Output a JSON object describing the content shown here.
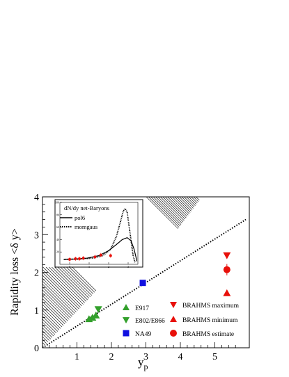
{
  "chart_data": {
    "type": "scatter",
    "ylabel": "Rapidity loss <δ y>",
    "xlabel": "y",
    "xlabel_sub": "p",
    "xlim": [
      0,
      6
    ],
    "ylim": [
      0,
      4
    ],
    "x_ticks": [
      "1",
      "2",
      "3",
      "4",
      "5"
    ],
    "y_ticks": [
      "0",
      "1",
      "2",
      "3",
      "4"
    ],
    "reference_line": {
      "style": "dotted",
      "x": [
        0,
        5.9
      ],
      "y": [
        0,
        3.4
      ]
    },
    "shaded_regions": [
      "upper-left hatched triangle",
      "lower-left hatched region"
    ],
    "series": [
      {
        "name": "E917",
        "marker": "triangle-up",
        "color": "#33a02c",
        "points": [
          {
            "x": 1.35,
            "y": 0.76
          },
          {
            "x": 1.45,
            "y": 0.8
          },
          {
            "x": 1.55,
            "y": 0.86
          }
        ]
      },
      {
        "name": "E802/E866",
        "marker": "triangle-down",
        "color": "#33a02c",
        "points": [
          {
            "x": 1.62,
            "y": 1.02
          }
        ]
      },
      {
        "name": "NA49",
        "marker": "square",
        "color": "#1010e0",
        "points": [
          {
            "x": 2.91,
            "y": 1.72
          }
        ]
      },
      {
        "name": "BRAHMS maximum",
        "marker": "triangle-down",
        "color": "#e8100a",
        "points": [
          {
            "x": 5.35,
            "y": 2.45
          }
        ]
      },
      {
        "name": "BRAHMS minimum",
        "marker": "triangle-up",
        "color": "#e8100a",
        "points": [
          {
            "x": 5.35,
            "y": 1.45
          }
        ]
      },
      {
        "name": "BRAHMS estimate",
        "marker": "circle",
        "color": "#e8100a",
        "points": [
          {
            "x": 5.35,
            "y": 2.07,
            "err": 0.15
          }
        ]
      }
    ],
    "inset": {
      "title": "dN/dy net-Baryons",
      "legend": [
        {
          "name": "pol6",
          "style": "solid"
        },
        {
          "name": "momgaus",
          "style": "dotted"
        }
      ],
      "xlim": [
        -0.5,
        3.5
      ],
      "ylim": [
        0,
        100
      ],
      "x_ticks": [
        "0",
        "1",
        "2",
        "3"
      ],
      "y_ticks": [
        "20",
        "40",
        "60",
        "80",
        "100"
      ],
      "points": [
        {
          "x": 0.0,
          "y": 8
        },
        {
          "x": 0.3,
          "y": 9
        },
        {
          "x": 0.5,
          "y": 9
        },
        {
          "x": 0.7,
          "y": 10
        },
        {
          "x": 1.3,
          "y": 12
        },
        {
          "x": 1.6,
          "y": 15
        },
        {
          "x": 2.1,
          "y": 14
        }
      ]
    }
  }
}
